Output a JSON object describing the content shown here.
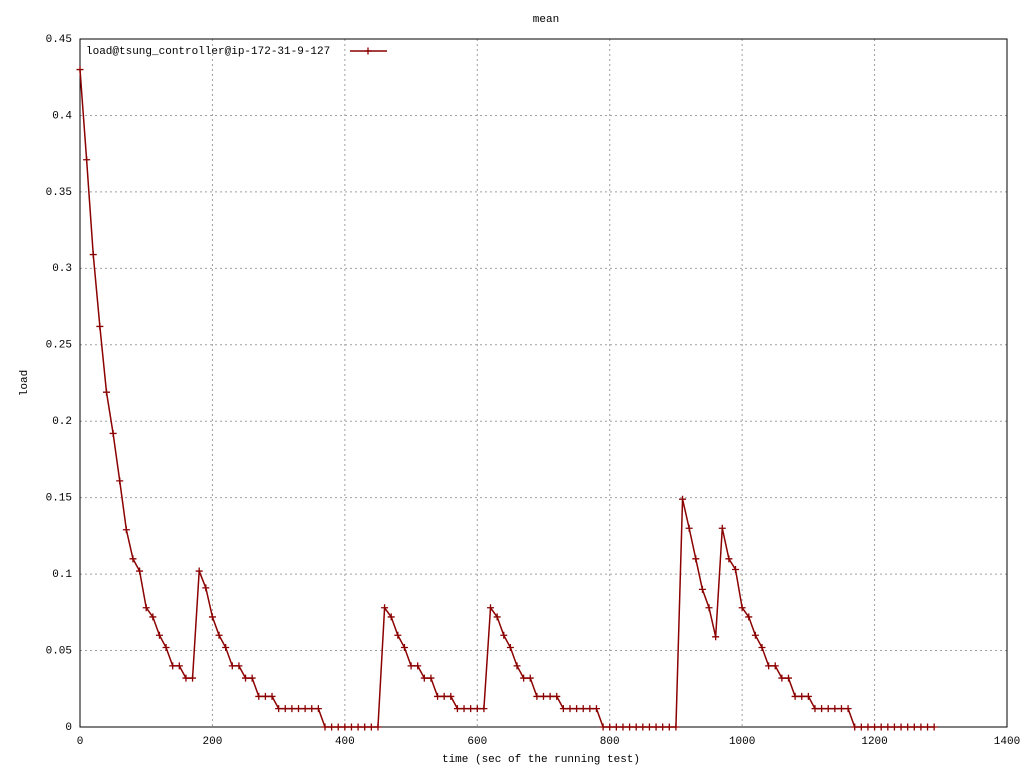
{
  "chart_data": {
    "type": "line",
    "title": "mean",
    "x_label": "time (sec of the running test)",
    "y_label": "load",
    "xlim": [
      0,
      1400
    ],
    "xticks": [
      0,
      200,
      400,
      600,
      800,
      1000,
      1200,
      1400
    ],
    "ylim": [
      0,
      0.45
    ],
    "yticks": [
      0,
      0.05,
      0.1,
      0.15,
      0.2,
      0.25,
      0.3,
      0.35,
      0.4,
      0.45
    ],
    "grid": true,
    "legend": "top-left",
    "series": [
      {
        "name": "load@tsung_controller@ip-172-31-9-127",
        "color": "#8b0000",
        "x": [
          0,
          10,
          20,
          30,
          40,
          50,
          60,
          70,
          80,
          90,
          100,
          110,
          120,
          130,
          140,
          150,
          160,
          170,
          180,
          190,
          200,
          210,
          220,
          230,
          240,
          250,
          260,
          270,
          280,
          290,
          300,
          310,
          320,
          330,
          340,
          350,
          360,
          370,
          380,
          390,
          400,
          410,
          420,
          430,
          440,
          450,
          460,
          470,
          480,
          490,
          500,
          510,
          520,
          530,
          540,
          550,
          560,
          570,
          580,
          590,
          600,
          610,
          620,
          630,
          640,
          650,
          660,
          670,
          680,
          690,
          700,
          710,
          720,
          730,
          740,
          750,
          760,
          770,
          780,
          790,
          800,
          810,
          820,
          830,
          840,
          850,
          860,
          870,
          880,
          890,
          900,
          910,
          920,
          930,
          940,
          950,
          960,
          970,
          980,
          990,
          1000,
          1010,
          1020,
          1030,
          1040,
          1050,
          1060,
          1070,
          1080,
          1090,
          1100,
          1110,
          1120,
          1130,
          1140,
          1150,
          1160,
          1170,
          1180,
          1190,
          1200,
          1210,
          1220,
          1230,
          1240,
          1250,
          1260,
          1270,
          1280,
          1290
        ],
        "values": [
          0.43,
          0.371,
          0.309,
          0.262,
          0.219,
          0.192,
          0.161,
          0.129,
          0.11,
          0.102,
          0.078,
          0.072,
          0.06,
          0.052,
          0.04,
          0.04,
          0.032,
          0.032,
          0.102,
          0.091,
          0.072,
          0.06,
          0.052,
          0.04,
          0.04,
          0.032,
          0.032,
          0.02,
          0.02,
          0.02,
          0.012,
          0.012,
          0.012,
          0.012,
          0.012,
          0.012,
          0.012,
          0,
          0,
          0,
          0,
          0,
          0,
          0,
          0,
          0,
          0.078,
          0.072,
          0.06,
          0.052,
          0.04,
          0.04,
          0.032,
          0.032,
          0.02,
          0.02,
          0.02,
          0.012,
          0.012,
          0.012,
          0.012,
          0.012,
          0.078,
          0.072,
          0.06,
          0.052,
          0.04,
          0.032,
          0.032,
          0.02,
          0.02,
          0.02,
          0.02,
          0.012,
          0.012,
          0.012,
          0.012,
          0.012,
          0.012,
          0,
          0,
          0,
          0,
          0,
          0,
          0,
          0,
          0,
          0,
          0,
          0,
          0.149,
          0.13,
          0.11,
          0.09,
          0.078,
          0.059,
          0.13,
          0.11,
          0.103,
          0.078,
          0.072,
          0.06,
          0.052,
          0.04,
          0.04,
          0.032,
          0.032,
          0.02,
          0.02,
          0.02,
          0.012,
          0.012,
          0.012,
          0.012,
          0.012,
          0.012,
          0,
          0,
          0,
          0,
          0,
          0,
          0,
          0,
          0,
          0,
          0,
          0,
          0
        ]
      }
    ]
  }
}
